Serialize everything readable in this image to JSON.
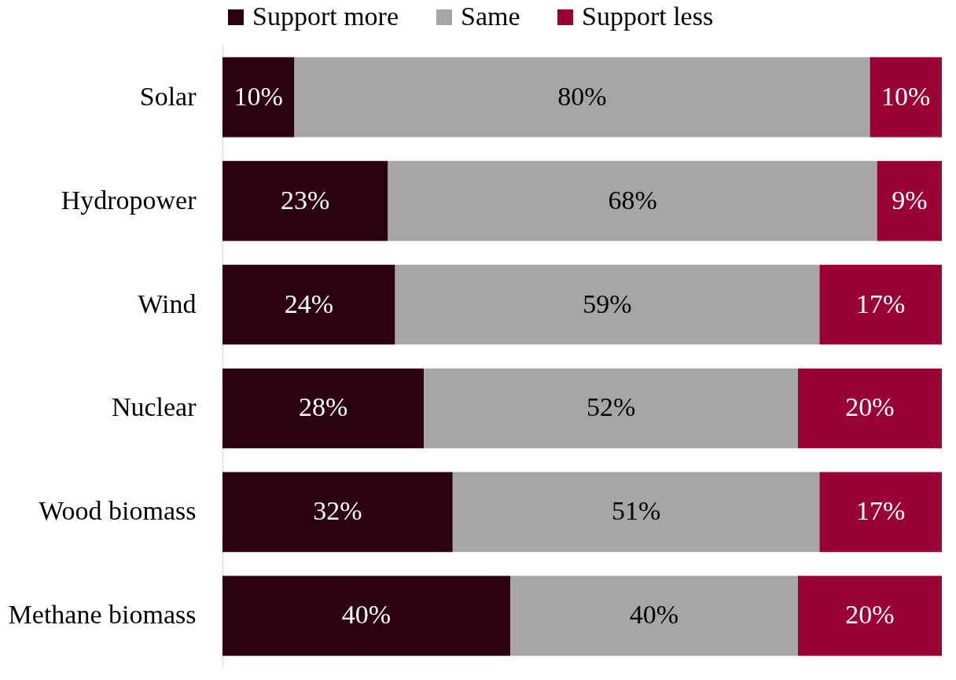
{
  "chart_data": {
    "type": "bar",
    "orientation": "horizontal",
    "stacked": true,
    "categories": [
      "Solar",
      "Hydropower",
      "Wind",
      "Nuclear",
      "Wood biomass",
      "Methane biomass"
    ],
    "series": [
      {
        "name": "Support more",
        "color": "#2b0010",
        "values": [
          10,
          23,
          24,
          28,
          32,
          40
        ],
        "value_labels": [
          "10%",
          "23%",
          "24%",
          "28%",
          "32%",
          "40%"
        ]
      },
      {
        "name": "Same",
        "color": "#a6a6a6",
        "values": [
          80,
          68,
          59,
          52,
          51,
          40
        ],
        "value_labels": [
          "80%",
          "68%",
          "59%",
          "52%",
          "51%",
          "40%"
        ]
      },
      {
        "name": "Support less",
        "color": "#990033",
        "values": [
          10,
          9,
          17,
          20,
          17,
          20
        ],
        "value_labels": [
          "10%",
          "9%",
          "17%",
          "20%",
          "17%",
          "20%"
        ]
      }
    ],
    "xlim": [
      0,
      100
    ],
    "tick_labels": "y",
    "grid": false,
    "legend": "top"
  }
}
